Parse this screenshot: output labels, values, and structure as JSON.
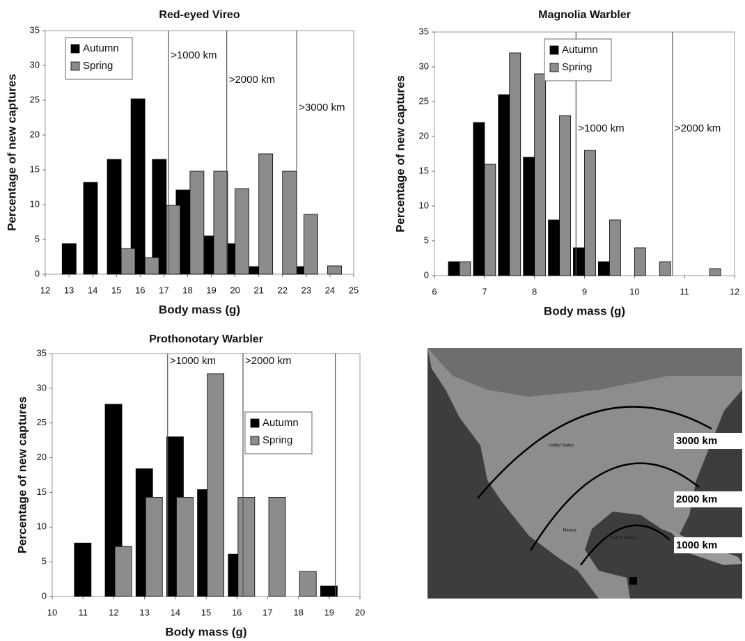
{
  "chart_data": [
    {
      "type": "bar",
      "title": "Red-eyed Vireo",
      "x_label": "Body mass (g)",
      "y_label": "Percentage of new captures",
      "x": [
        13.3,
        14.2,
        15.2,
        16.2,
        17.1,
        18.1,
        19.1,
        20.0,
        21.0,
        22.0,
        22.9,
        23.9
      ],
      "series": [
        {
          "name": "Autumn",
          "color": "#000000",
          "values": [
            4.4,
            13.2,
            16.5,
            25.2,
            16.5,
            12.1,
            5.5,
            4.4,
            1.1,
            0,
            1.1,
            0
          ]
        },
        {
          "name": "Spring",
          "color": "#8c8c8c",
          "values": [
            0,
            0,
            3.7,
            2.4,
            9.9,
            14.8,
            14.8,
            12.3,
            17.3,
            14.8,
            8.6,
            1.2
          ]
        }
      ],
      "xlim": [
        12,
        25
      ],
      "xticks": [
        12,
        13,
        14,
        15,
        16,
        17,
        18,
        19,
        20,
        21,
        22,
        23,
        24,
        25
      ],
      "ylim": [
        0,
        35
      ],
      "yticks": [
        0,
        5,
        10,
        15,
        20,
        25,
        30,
        35
      ],
      "vlines": [
        {
          "x": 17.2,
          "label": ">1000 km"
        },
        {
          "x": 19.65,
          "label": ">2000 km"
        },
        {
          "x": 22.6,
          "label": ">3000 km"
        }
      ],
      "legend": "upper left"
    },
    {
      "type": "bar",
      "title": "Magnolia Warbler",
      "x_label": "Body mass (g)",
      "y_label": "Percentage of new captures",
      "x": [
        6.5,
        7.0,
        7.5,
        8.0,
        8.5,
        9.0,
        9.5,
        10.0,
        10.5,
        11.0,
        11.5
      ],
      "series": [
        {
          "name": "Autumn",
          "color": "#000000",
          "values": [
            2,
            22,
            26,
            17,
            8,
            4,
            2,
            0,
            0,
            0,
            0
          ]
        },
        {
          "name": "Spring",
          "color": "#8c8c8c",
          "values": [
            2,
            16,
            32,
            29,
            23,
            18,
            8,
            4,
            2,
            0,
            1
          ]
        }
      ],
      "xlim": [
        6,
        12
      ],
      "xticks": [
        6,
        7,
        8,
        9,
        10,
        11,
        12
      ],
      "ylim": [
        0,
        35
      ],
      "yticks": [
        0,
        5,
        10,
        15,
        20,
        25,
        30,
        35
      ],
      "vlines": [
        {
          "x": 8.83,
          "label": ">1000 km"
        },
        {
          "x": 10.76,
          "label": ">2000 km"
        }
      ],
      "legend": "upper center"
    },
    {
      "type": "bar",
      "title": "Prothonotary Warbler",
      "x_label": "Body mass (g)",
      "y_label": "Percentage of new captures",
      "x": [
        11.15,
        12.15,
        13.15,
        14.15,
        15.15,
        16.15,
        17.15,
        18.15,
        19.15
      ],
      "series": [
        {
          "name": "Autumn",
          "color": "#000000",
          "values": [
            7.7,
            27.7,
            18.4,
            23.0,
            15.4,
            6.1,
            0,
            0,
            1.5
          ]
        },
        {
          "name": "Spring",
          "color": "#8c8c8c",
          "values": [
            0,
            7.2,
            14.3,
            14.3,
            32.1,
            14.3,
            14.3,
            3.6,
            0
          ]
        }
      ],
      "xlim": [
        10,
        20
      ],
      "xticks": [
        10,
        11,
        12,
        13,
        14,
        15,
        16,
        17,
        18,
        19,
        20
      ],
      "ylim": [
        0,
        35
      ],
      "yticks": [
        0,
        5,
        10,
        15,
        20,
        25,
        30,
        35
      ],
      "vlines": [
        {
          "x": 13.75,
          "label": ">1000 km"
        },
        {
          "x": 16.2,
          "label": ">2000 km"
        },
        {
          "x": 19.2
        }
      ],
      "legend": "center right"
    }
  ],
  "map": {
    "distances": [
      "3000 km",
      "2000 km",
      "1000 km"
    ],
    "places": [
      "United States",
      "México",
      "Gulf of Mexico"
    ]
  }
}
